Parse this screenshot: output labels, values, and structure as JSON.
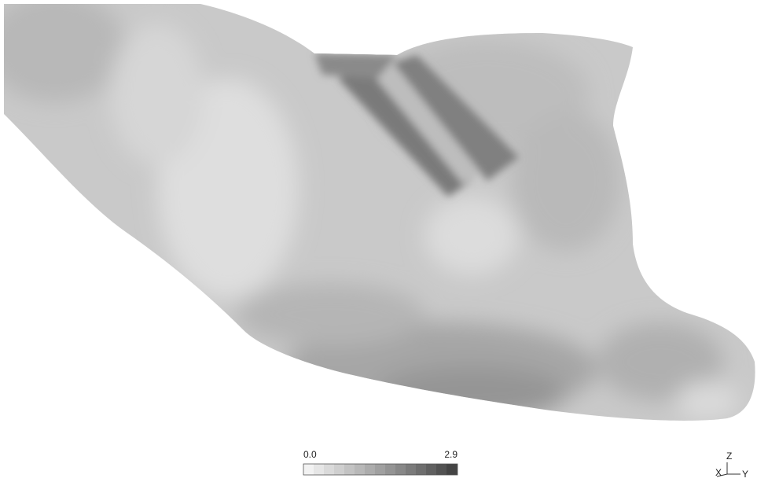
{
  "legend": {
    "min": "0.0",
    "max": "2.9"
  },
  "triad": {
    "z": "Z",
    "x": "X",
    "y": "Y"
  }
}
